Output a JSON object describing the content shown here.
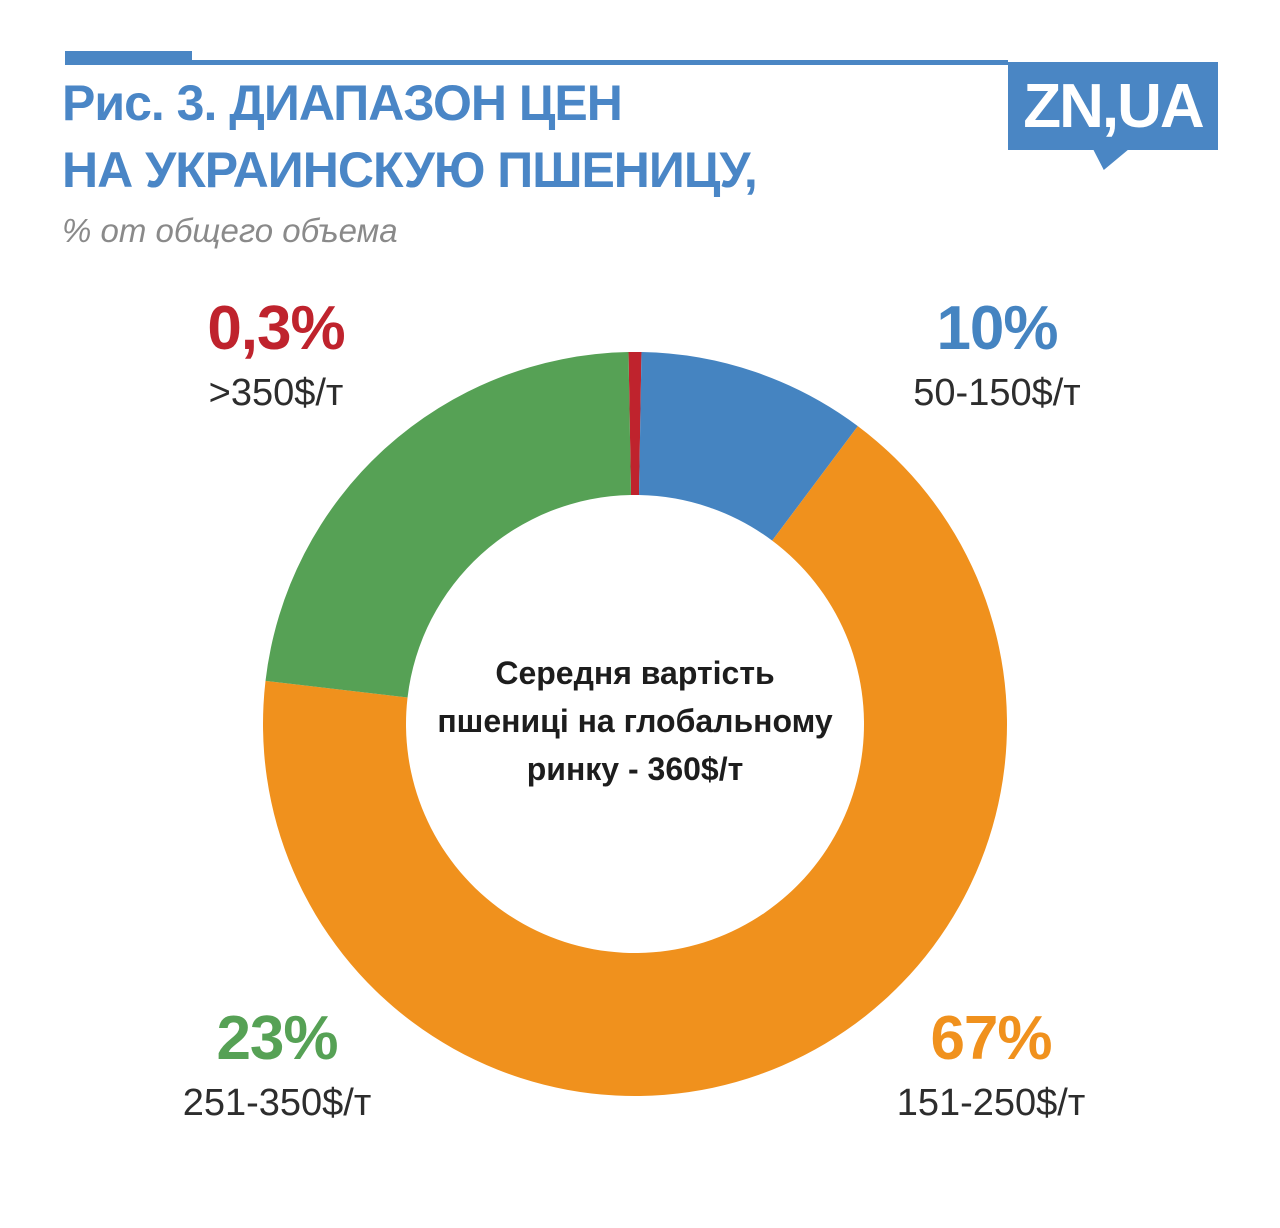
{
  "header": {
    "title_line1": "Рис. 3. ДИАПАЗОН ЦЕН",
    "title_line2": "НА УКРАИНСКУЮ ПШЕНИЦУ,",
    "subtitle": "% от общего объема",
    "logo_text": "ZN,UA",
    "accent_color": "#4a86c4",
    "title_color": "#4a86c6"
  },
  "chart_data": {
    "type": "pie",
    "subtype": "donut",
    "title": "Рис. 3. ДИАПАЗОН ЦЕН НА УКРАИНСКУЮ ПШЕНИЦУ,",
    "unit": "% от общего объема",
    "legend_position": "around",
    "min_slice_display_angle_deg": 2,
    "slices": [
      {
        "pct_label": "0,3%",
        "value": 0.3,
        "range": ">350$/т",
        "color": "#bf232d"
      },
      {
        "pct_label": "10%",
        "value": 10,
        "range": "50-150$/т",
        "color": "#4584c1"
      },
      {
        "pct_label": "67%",
        "value": 67,
        "range": "151-250$/т",
        "color": "#f0911d"
      },
      {
        "pct_label": "23%",
        "value": 23,
        "range": "251-350$/т",
        "color": "#56a155"
      }
    ],
    "center_text": "Середня вартість пшениці на глобальному ринку - 360$/т",
    "center_lines": [
      "Середня вартість",
      "пшениці на глобальному",
      "ринку - 360$/т"
    ]
  }
}
